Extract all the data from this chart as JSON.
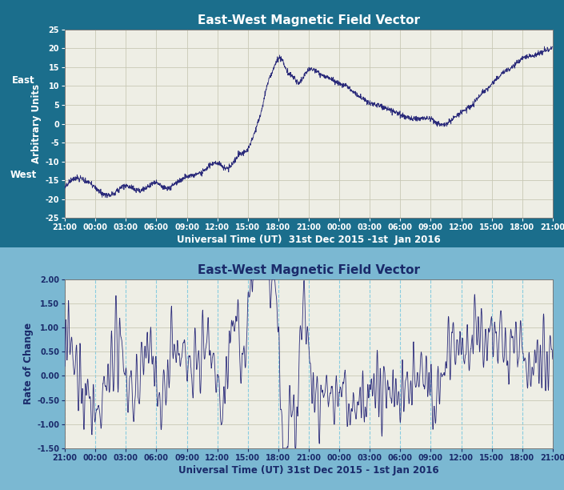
{
  "title1": "East-West Magnetic Field Vector",
  "title2": "East-West Magnetic Field Vector",
  "xlabel1": "Universal Time (UT)  31st Dec 2015 -1st  Jan 2016",
  "xlabel2": "Universal Time (UT) 31st Dec 2015 - 1st Jan 2016",
  "ylabel1": "Arbitrary Units",
  "ylabel2": "Rate of Change",
  "ylim1": [
    -25,
    25
  ],
  "ylim2": [
    -1.5,
    2.0
  ],
  "yticks1": [
    -25,
    -20,
    -15,
    -10,
    -5,
    0,
    5,
    10,
    15,
    20,
    25
  ],
  "yticks2": [
    -1.5,
    -1.0,
    -0.5,
    0.0,
    0.5,
    1.0,
    1.5,
    2.0
  ],
  "panel1_bg": "#EEEEE5",
  "panel2_bg": "#EEEEE5",
  "outer_bg1": "#1B6E8C",
  "outer_bg2": "#7BB8D2",
  "line_color": "#2A2A7A",
  "grid_color1": "#C8C8B5",
  "grid_color2": "#88CCE0",
  "title_color1": "#FFFFFF",
  "title_color2": "#1A2A6A",
  "xlabel_color1": "#FFFFFF",
  "xlabel_color2": "#1A2A6A",
  "ylabel_color1": "#FFFFFF",
  "ylabel_color2": "#1A2A6A",
  "tick_label_color1": "#FFFFFF",
  "tick_label_color2": "#1A2A6A",
  "tick_labels": [
    "21:00",
    "00:00",
    "03:00",
    "06:00",
    "09:00",
    "12:00",
    "15:00",
    "18:00",
    "21:00",
    "00:00",
    "03:00",
    "06:00",
    "09:00",
    "12:00",
    "15:00",
    "18:00",
    "21:00"
  ],
  "num_points": 2000
}
